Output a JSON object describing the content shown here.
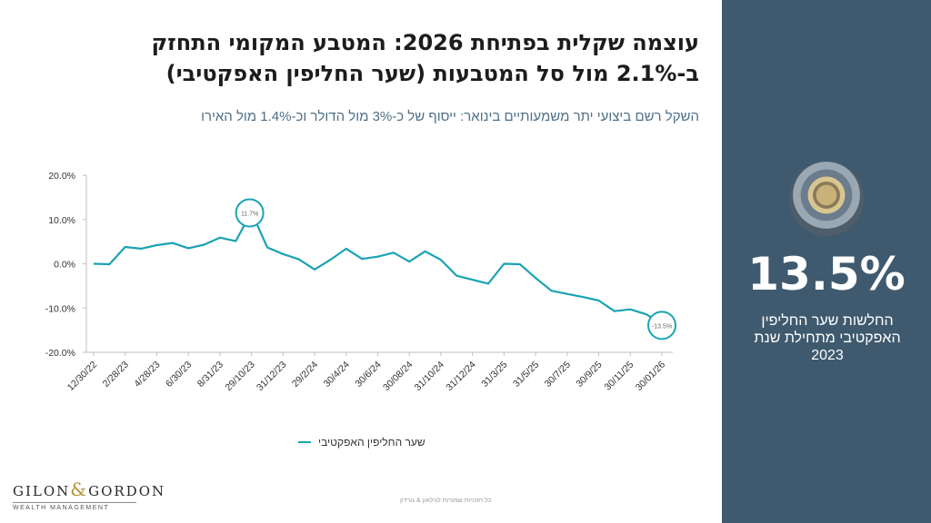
{
  "title": {
    "line1": "עוצמה שקלית בפתיחת 2026: המטבע המקומי התחזק",
    "line2": "ב-2.1% מול סל המטבעות (שער החליפין האפקטיבי)"
  },
  "subtitle": "השקל רשם ביצועי יתר משמעותיים בינואר: ייסוף של כ-3% מול הדולר וכ-1.4% מול האירו",
  "side_panel": {
    "big_number": "13.5%",
    "description": "החלשות שער החליפין האפקטיבי מתחילת שנת 2023",
    "image_icon": "coins-photo"
  },
  "legend": {
    "label": "שער החליפין האפקטיבי"
  },
  "logo": {
    "brand_left": "GILON",
    "ampersand": "&",
    "brand_right": "GORDON",
    "tagline": "WEALTH MANAGEMENT"
  },
  "footer": "כל הזכויות שמורות לגילאון & גורדון",
  "colors": {
    "series": "#1aa3b3",
    "panel": "#3f5a6e",
    "subtitle": "#4e6f88"
  },
  "chart_data": {
    "type": "line",
    "title": "",
    "xlabel": "",
    "ylabel": "",
    "ylim": [
      -20,
      20
    ],
    "yticks": [
      20,
      10,
      0,
      -10,
      -20
    ],
    "ytick_labels": [
      "20.0%",
      "10.0%",
      "0.0%",
      "-10.0%",
      "-20.0%"
    ],
    "tick_labels": [
      "12/30/22",
      "2/28/23",
      "4/28/23",
      "6/30/23",
      "8/31/23",
      "29/10/23",
      "31/12/23",
      "29/2/24",
      "30/4/24",
      "30/6/24",
      "30/08/24",
      "31/10/24",
      "31/12/24",
      "31/3/25",
      "31/5/25",
      "30/7/25",
      "30/9/25",
      "30/11/25",
      "30/01/26"
    ],
    "series": [
      {
        "name": "שער החליפין האפקטיבי",
        "values": [
          0.0,
          -0.1,
          3.8,
          3.4,
          4.2,
          4.7,
          3.5,
          4.3,
          5.9,
          5.1,
          11.7,
          3.7,
          2.2,
          1.0,
          -1.3,
          0.9,
          3.4,
          1.1,
          1.6,
          2.5,
          0.5,
          2.8,
          0.9,
          -2.7,
          -3.6,
          -4.5,
          0.0,
          -0.1,
          -3.2,
          -6.1,
          -6.8,
          -7.5,
          -8.3,
          -10.7,
          -10.3,
          -11.4,
          -13.5
        ]
      }
    ],
    "annotations": [
      {
        "index": 10,
        "label": "11.7%"
      },
      {
        "index": 36,
        "label": "-13.5%"
      }
    ]
  }
}
